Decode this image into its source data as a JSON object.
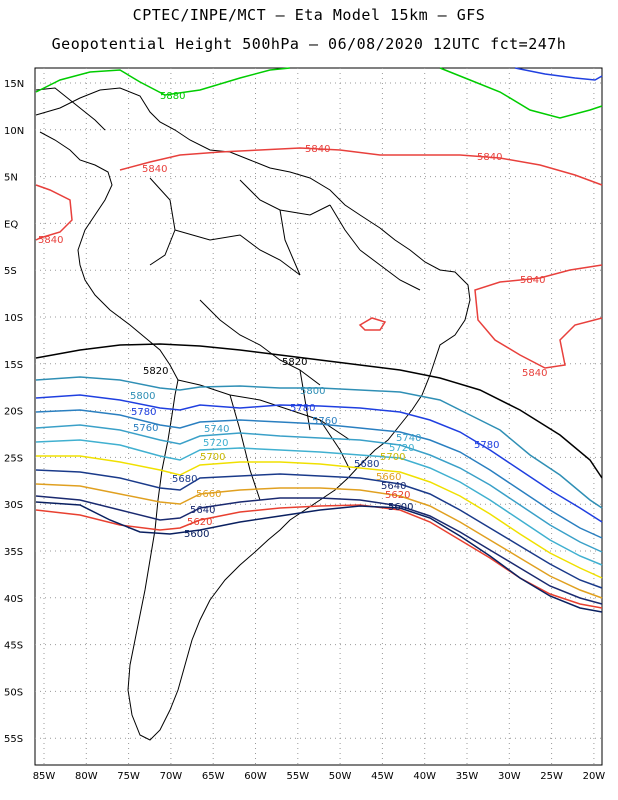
{
  "header": {
    "line1": "CPTEC/INPE/MCT –  Eta Model 15km – GFS",
    "line2": "Geopotential Height 500hPa – 06/08/2020 12UTC fct=247h"
  },
  "axes": {
    "lat_labels": [
      "15N",
      "10N",
      "5N",
      "EQ",
      "5S",
      "10S",
      "15S",
      "20S",
      "25S",
      "30S",
      "35S",
      "40S",
      "45S",
      "50S",
      "55S"
    ],
    "lon_labels": [
      "85W",
      "80W",
      "75W",
      "70W",
      "65W",
      "60W",
      "55W",
      "50W",
      "45W",
      "40W",
      "35W",
      "30W",
      "25W",
      "20W"
    ]
  },
  "contour_labels": {
    "c5880": "5880",
    "c5840a": "5840",
    "c5840b": "5840",
    "c5840c": "5840",
    "c5840d": "5840",
    "c5840e": "5840",
    "c5840f": "5840",
    "c5820a": "5820",
    "c5820b": "5820",
    "c5800a": "5800",
    "c5800b": "5800",
    "c5780a": "5780",
    "c5780b": "5780",
    "c5780c": "5780",
    "c5760a": "5760",
    "c5760b": "5760",
    "c5740a": "5740",
    "c5740b": "5740",
    "c5720a": "5720",
    "c5720b": "5720",
    "c5700a": "5700",
    "c5700b": "5700",
    "c5680a": "5680",
    "c5680b": "5680",
    "c5660a": "5660",
    "c5660b": "5660",
    "c5640a": "5640",
    "c5640b": "5640",
    "c5620a": "5620",
    "c5620b": "5620",
    "c5600a": "5600",
    "c5600b": "5600"
  },
  "colors": {
    "c5880": "#00cc00",
    "c5840": "#e8403c",
    "c5820": "#000000",
    "c5800": "#2f8fb5",
    "c5780": "#1f3fe0",
    "c5760": "#2a7fc0",
    "c5740": "#3aa0c8",
    "c5720": "#40b0d0",
    "c5700": "#f0e000",
    "c5680": "#1a3a8a",
    "c5660": "#e0a020",
    "c5640": "#1a2a70",
    "c5620": "#e84030",
    "c5600": "#0a2060",
    "blue_top": "#2040e0"
  }
}
